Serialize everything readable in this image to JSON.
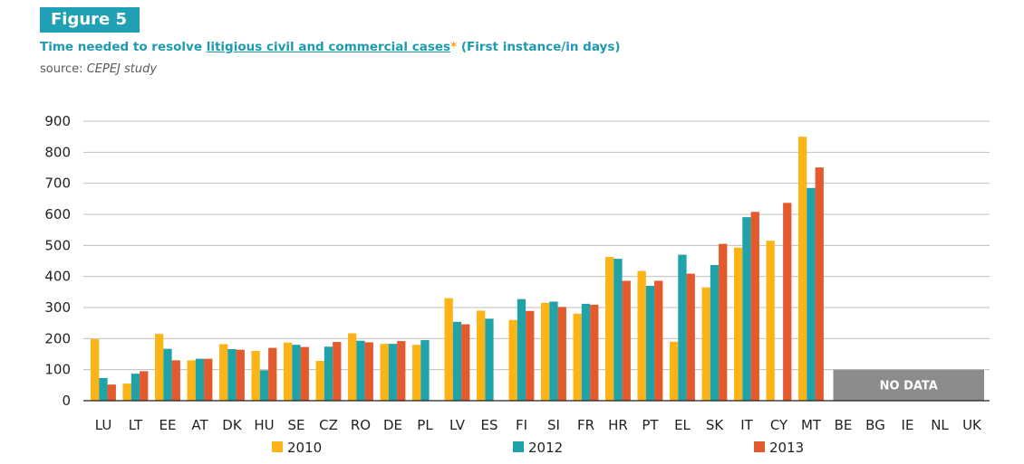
{
  "figure_label": "Figure 5",
  "title_prefix": "Time needed to resolve ",
  "title_link": "litigious civil and commercial cases",
  "title_star": "*",
  "title_suffix": " (First instance/in days)",
  "source_label": "source: ",
  "source_value": "CEPEJ study",
  "no_data_label": "NO DATA",
  "colors": {
    "2010": "#fbb315",
    "2012": "#1fa2a8",
    "2013": "#e35a2e",
    "no_data": "#8c8c8c",
    "grid": "#bfbfbf"
  },
  "chart_data": {
    "type": "bar",
    "title": "Time needed to resolve litigious civil and commercial cases* (First instance/in days)",
    "xlabel": "",
    "ylabel": "",
    "ylim": [
      0,
      900
    ],
    "yticks": [
      0,
      100,
      200,
      300,
      400,
      500,
      600,
      700,
      800,
      900
    ],
    "grid": true,
    "legend_position": "bottom",
    "categories": [
      "LU",
      "LT",
      "EE",
      "AT",
      "DK",
      "HU",
      "SE",
      "CZ",
      "RO",
      "DE",
      "PL",
      "LV",
      "ES",
      "FI",
      "SI",
      "FR",
      "HR",
      "PT",
      "EL",
      "SK",
      "IT",
      "CY",
      "MT",
      "BE",
      "BG",
      "IE",
      "NL",
      "UK"
    ],
    "no_data_categories": [
      "BE",
      "BG",
      "IE",
      "NL",
      "UK"
    ],
    "series": [
      {
        "name": "2010",
        "values": [
          198,
          55,
          215,
          130,
          182,
          160,
          187,
          128,
          217,
          183,
          180,
          330,
          290,
          260,
          315,
          280,
          463,
          418,
          190,
          365,
          493,
          515,
          850,
          null,
          null,
          null,
          null,
          null
        ]
      },
      {
        "name": "2012",
        "values": [
          73,
          87,
          167,
          135,
          166,
          98,
          180,
          174,
          193,
          183,
          195,
          254,
          264,
          327,
          319,
          312,
          457,
          370,
          470,
          437,
          591,
          null,
          685,
          null,
          null,
          null,
          null,
          null
        ]
      },
      {
        "name": "2013",
        "values": [
          52,
          95,
          130,
          135,
          164,
          170,
          173,
          189,
          188,
          192,
          null,
          246,
          null,
          289,
          302,
          309,
          386,
          386,
          409,
          505,
          608,
          637,
          751,
          null,
          null,
          null,
          null,
          null
        ]
      }
    ]
  }
}
